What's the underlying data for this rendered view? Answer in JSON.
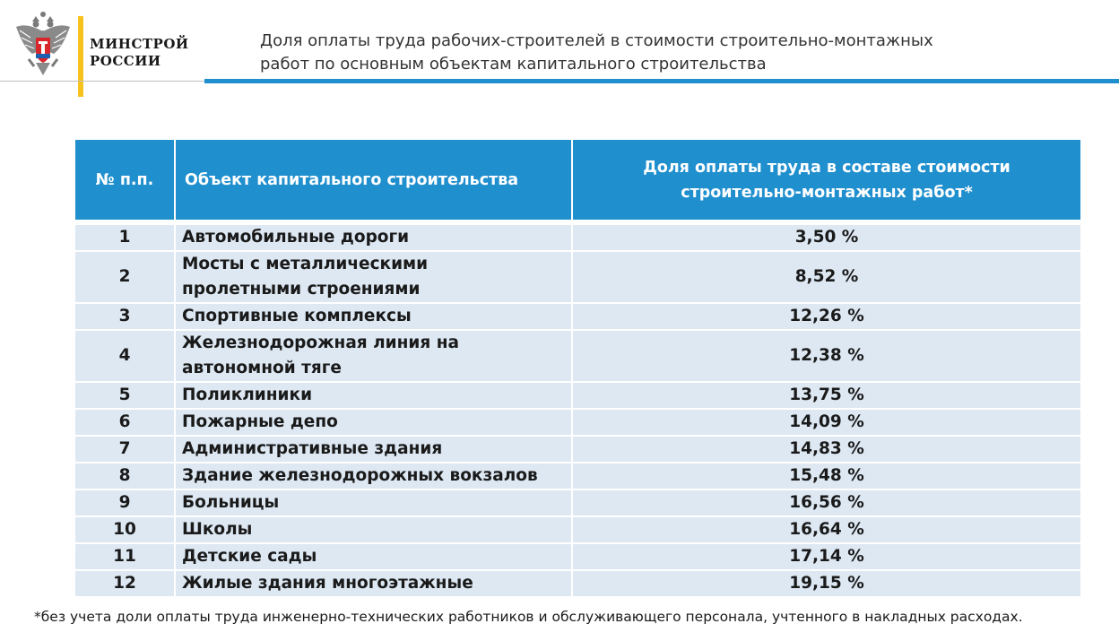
{
  "header": {
    "logo_line1": "МИНСТРОЙ",
    "logo_line2": "РОССИИ",
    "title_line1": "Доля оплаты труда рабочих-строителей в стоимости строительно-монтажных",
    "title_line2": "работ по основным объектам капитального строительства",
    "accent_color": "#1f8fce",
    "brand_bar_color": "#f6c21c"
  },
  "table": {
    "col_num": "№ п.п.",
    "col_object": "Объект капитального строительства",
    "col_share_line1": "Доля оплаты труда в составе стоимости",
    "col_share_line2": "строительно-монтажных работ*",
    "header_color": "#1f8fce",
    "row_color": "#dde8f3",
    "rows": [
      {
        "num": "1",
        "object": [
          "Автомобильные дороги"
        ],
        "share": "3,50 %"
      },
      {
        "num": "2",
        "object": [
          "Мосты с металлическими",
          "пролетными строениями"
        ],
        "share": "8,52 %"
      },
      {
        "num": "3",
        "object": [
          "Спортивные комплексы"
        ],
        "share": "12,26 %"
      },
      {
        "num": "4",
        "object": [
          "Железнодорожная линия на",
          "автономной тяге"
        ],
        "share": "12,38 %"
      },
      {
        "num": "5",
        "object": [
          "Поликлиники"
        ],
        "share": "13,75 %"
      },
      {
        "num": "6",
        "object": [
          "Пожарные депо"
        ],
        "share": "14,09 %"
      },
      {
        "num": "7",
        "object": [
          "Административные здания"
        ],
        "share": "14,83 %"
      },
      {
        "num": "8",
        "object": [
          "Здание железнодорожных вокзалов"
        ],
        "share": "15,48 %"
      },
      {
        "num": "9",
        "object": [
          "Больницы"
        ],
        "share": "16,56 %"
      },
      {
        "num": "10",
        "object": [
          "Школы"
        ],
        "share": "16,64 %"
      },
      {
        "num": "11",
        "object": [
          "Детские сады"
        ],
        "share": "17,14 %"
      },
      {
        "num": "12",
        "object": [
          "Жилые здания многоэтажные"
        ],
        "share": "19,15 %"
      }
    ]
  },
  "footnote": "*без учета доли оплаты труда инженерно-технических работников и обслуживающего персонала, учтенного в накладных расходах."
}
